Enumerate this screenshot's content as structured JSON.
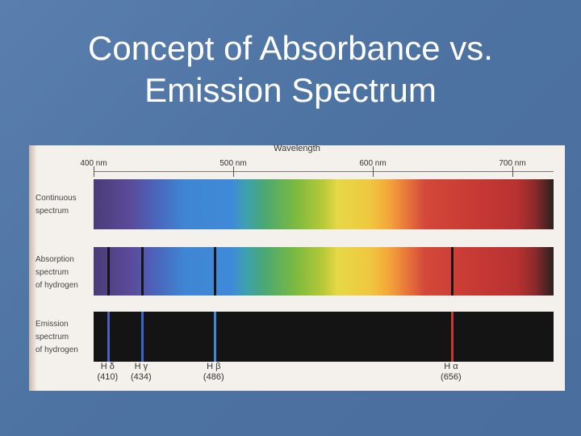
{
  "title": {
    "line1": "Concept of Absorbance vs.",
    "line2": "Emission Spectrum"
  },
  "figure": {
    "axis_title": "Wavelength",
    "ticks": [
      {
        "label": "400 nm",
        "nm": 400
      },
      {
        "label": "500 nm",
        "nm": 500
      },
      {
        "label": "600 nm",
        "nm": 600
      },
      {
        "label": "700 nm",
        "nm": 700
      }
    ],
    "rows": {
      "continuous": {
        "line1": "Continuous",
        "line2": "spectrum"
      },
      "absorption": {
        "line1": "Absorption",
        "line2": "spectrum",
        "line3": "of hydrogen"
      },
      "emission": {
        "line1": "Emission",
        "line2": "spectrum",
        "line3": "of hydrogen"
      }
    },
    "hydrogen_lines": [
      {
        "name": "H δ",
        "value": "(410)",
        "nm": 410,
        "color": "#4a5fbf"
      },
      {
        "name": "H γ",
        "value": "(434)",
        "nm": 434,
        "color": "#3a66c8"
      },
      {
        "name": "H β",
        "value": "(486)",
        "nm": 486,
        "color": "#3e8ad8"
      },
      {
        "name": "H α",
        "value": "(656)",
        "nm": 656,
        "color": "#c23a34"
      }
    ]
  }
}
